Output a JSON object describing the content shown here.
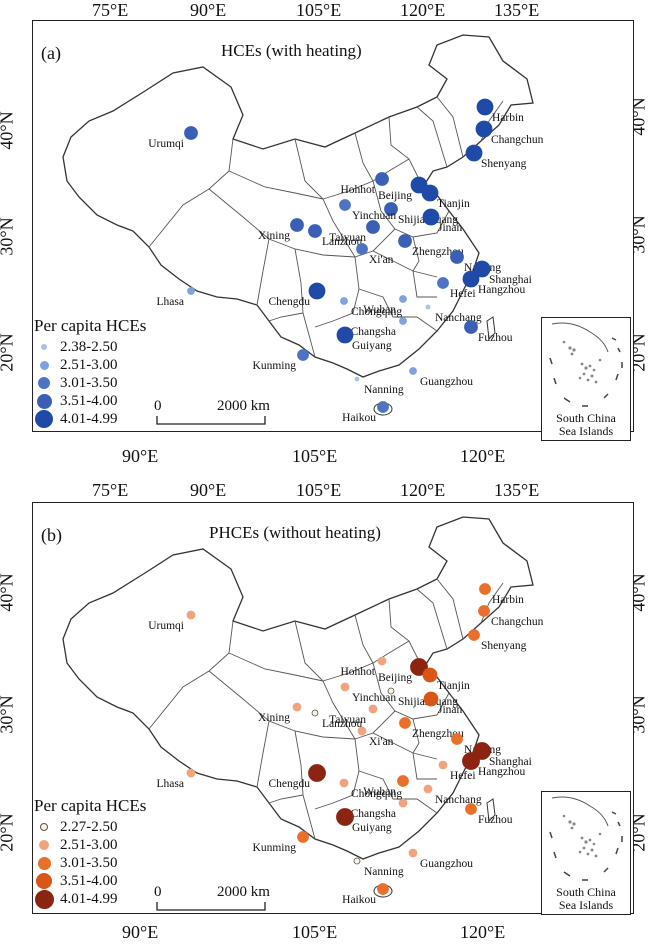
{
  "axes": {
    "top_lon_labels": [
      "75°E",
      "90°E",
      "105°E",
      "120°E",
      "135°E"
    ],
    "bottom_lon_labels": [
      "90°E",
      "105°E",
      "120°E"
    ],
    "lat_labels": [
      "40°N",
      "30°N",
      "20°N"
    ]
  },
  "panels": [
    {
      "letter": "(a)",
      "title": "HCEs (with heating)",
      "legend_title": "Per capita HCEs",
      "legend_items": [
        {
          "label": "2.38-2.50",
          "color": "#a9c0e8"
        },
        {
          "label": "2.51-3.00",
          "color": "#7fa2dc"
        },
        {
          "label": "3.01-3.50",
          "color": "#4f73c2"
        },
        {
          "label": "3.51-4.00",
          "color": "#3a5fb5"
        },
        {
          "label": "4.01-4.99",
          "color": "#1f4aa8"
        }
      ],
      "scale_zero": "0",
      "scale_label": "2000 km",
      "inset_label_1": "South China",
      "inset_label_2": "Sea Islands",
      "cities": [
        {
          "name": "Harbin",
          "cls": 4
        },
        {
          "name": "Changchun",
          "cls": 4
        },
        {
          "name": "Shenyang",
          "cls": 4
        },
        {
          "name": "Urumqi",
          "cls": 3
        },
        {
          "name": "Hohhot",
          "cls": 3
        },
        {
          "name": "Beijing",
          "cls": 4
        },
        {
          "name": "Tianjin",
          "cls": 4
        },
        {
          "name": "Shijiazhuang",
          "cls": 3
        },
        {
          "name": "Taiyuan",
          "cls": 3
        },
        {
          "name": "Jinan",
          "cls": 4
        },
        {
          "name": "Xining",
          "cls": 3
        },
        {
          "name": "Yinchuan",
          "cls": 2
        },
        {
          "name": "Lanzhou",
          "cls": 3
        },
        {
          "name": "Xi'an",
          "cls": 2
        },
        {
          "name": "Zhengzhou",
          "cls": 3
        },
        {
          "name": "Nanjing",
          "cls": 3
        },
        {
          "name": "Shanghai",
          "cls": 4
        },
        {
          "name": "Hefei",
          "cls": 2
        },
        {
          "name": "Hangzhou",
          "cls": 4
        },
        {
          "name": "Lhasa",
          "cls": 1
        },
        {
          "name": "Chengdu",
          "cls": 4
        },
        {
          "name": "Chongqing",
          "cls": 1
        },
        {
          "name": "Wuhan",
          "cls": 1
        },
        {
          "name": "Nanchang",
          "cls": 0
        },
        {
          "name": "Changsha",
          "cls": 1
        },
        {
          "name": "Guiyang",
          "cls": 4
        },
        {
          "name": "Fuzhou",
          "cls": 3
        },
        {
          "name": "Kunming",
          "cls": 2
        },
        {
          "name": "Guangzhou",
          "cls": 1
        },
        {
          "name": "Nanning",
          "cls": 0
        },
        {
          "name": "Haikou",
          "cls": 2
        }
      ]
    },
    {
      "letter": "(b)",
      "title": "PHCEs (without heating)",
      "legend_title": "Per capita HCEs",
      "legend_items": [
        {
          "label": "2.27-2.50",
          "color": "#fdf2e2"
        },
        {
          "label": "2.51-3.00",
          "color": "#f0a37f"
        },
        {
          "label": "3.01-3.50",
          "color": "#e8702a"
        },
        {
          "label": "3.51-4.00",
          "color": "#d85618"
        },
        {
          "label": "4.01-4.99",
          "color": "#8b2512"
        }
      ],
      "scale_zero": "0",
      "scale_label": "2000 km",
      "inset_label_1": "South China",
      "inset_label_2": "Sea Islands",
      "cities": [
        {
          "name": "Harbin",
          "cls": 2
        },
        {
          "name": "Changchun",
          "cls": 2
        },
        {
          "name": "Shenyang",
          "cls": 2
        },
        {
          "name": "Urumqi",
          "cls": 1
        },
        {
          "name": "Hohhot",
          "cls": 1
        },
        {
          "name": "Beijing",
          "cls": 4
        },
        {
          "name": "Tianjin",
          "cls": 3
        },
        {
          "name": "Shijiazhuang",
          "cls": 0
        },
        {
          "name": "Taiyuan",
          "cls": 1
        },
        {
          "name": "Jinan",
          "cls": 3
        },
        {
          "name": "Xining",
          "cls": 1
        },
        {
          "name": "Yinchuan",
          "cls": 1
        },
        {
          "name": "Lanzhou",
          "cls": 0
        },
        {
          "name": "Xi'an",
          "cls": 1
        },
        {
          "name": "Zhengzhou",
          "cls": 2
        },
        {
          "name": "Nanjing",
          "cls": 2
        },
        {
          "name": "Shanghai",
          "cls": 4
        },
        {
          "name": "Hefei",
          "cls": 1
        },
        {
          "name": "Hangzhou",
          "cls": 4
        },
        {
          "name": "Lhasa",
          "cls": 1
        },
        {
          "name": "Chengdu",
          "cls": 4
        },
        {
          "name": "Chongqing",
          "cls": 1
        },
        {
          "name": "Wuhan",
          "cls": 2
        },
        {
          "name": "Nanchang",
          "cls": 1
        },
        {
          "name": "Changsha",
          "cls": 1
        },
        {
          "name": "Guiyang",
          "cls": 4
        },
        {
          "name": "Fuzhou",
          "cls": 2
        },
        {
          "name": "Kunming",
          "cls": 2
        },
        {
          "name": "Guangzhou",
          "cls": 1
        },
        {
          "name": "Nanning",
          "cls": 0
        },
        {
          "name": "Haikou",
          "cls": 2
        }
      ]
    }
  ]
}
